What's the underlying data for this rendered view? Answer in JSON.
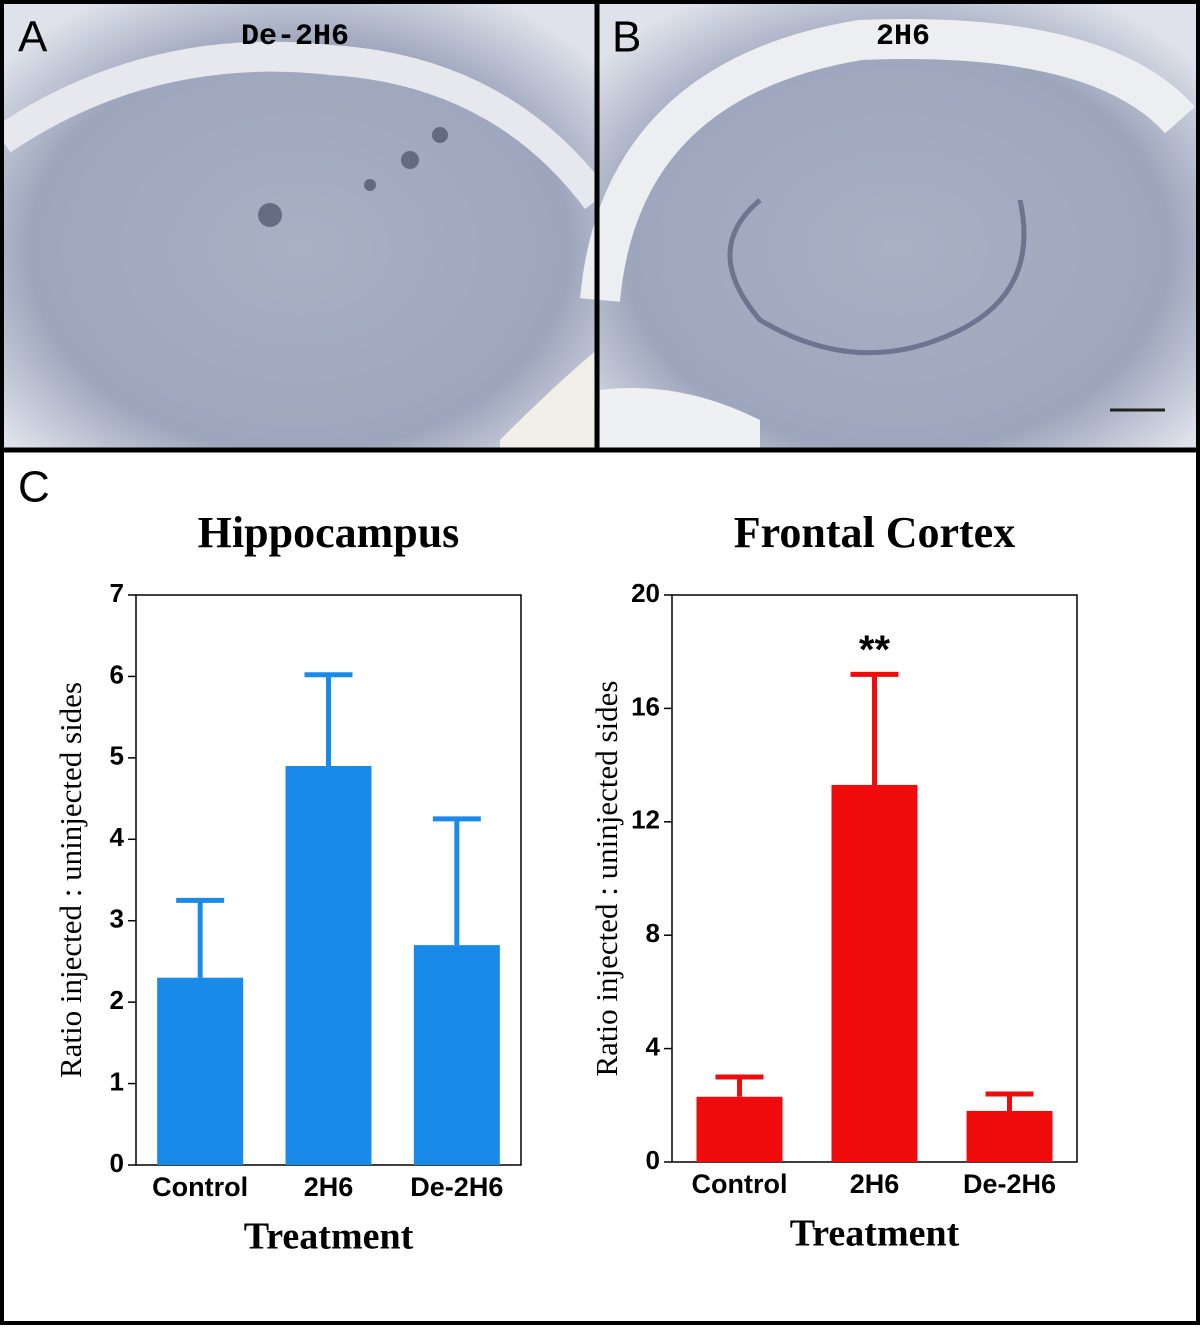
{
  "figure": {
    "panels": [
      {
        "label": "A",
        "caption": "De-2H6"
      },
      {
        "label": "B",
        "caption": "2H6"
      },
      {
        "label": "C"
      }
    ]
  },
  "chart_data": [
    {
      "type": "bar",
      "title": "Hippocampus",
      "xlabel": "Treatment",
      "ylabel": "Ratio injected : uninjected sides",
      "categories": [
        "Control",
        "2H6",
        "De-2H6"
      ],
      "values": [
        2.3,
        4.9,
        2.7
      ],
      "errors": [
        0.95,
        1.12,
        1.55
      ],
      "color": "#1a8ae8",
      "ylim": [
        0,
        7
      ],
      "yticks": [
        0,
        1,
        2,
        3,
        4,
        5,
        6,
        7
      ]
    },
    {
      "type": "bar",
      "title": "Frontal Cortex",
      "xlabel": "Treatment",
      "ylabel": "Ratio injected : uninjected sides",
      "categories": [
        "Control",
        "2H6",
        "De-2H6"
      ],
      "values": [
        2.3,
        13.3,
        1.8
      ],
      "errors": [
        0.7,
        3.9,
        0.6
      ],
      "color": "#f00c0c",
      "ylim": [
        0,
        20
      ],
      "yticks": [
        0,
        4,
        8,
        12,
        16,
        20
      ],
      "annotations": [
        {
          "text": "**",
          "x": "2H6"
        }
      ]
    }
  ]
}
